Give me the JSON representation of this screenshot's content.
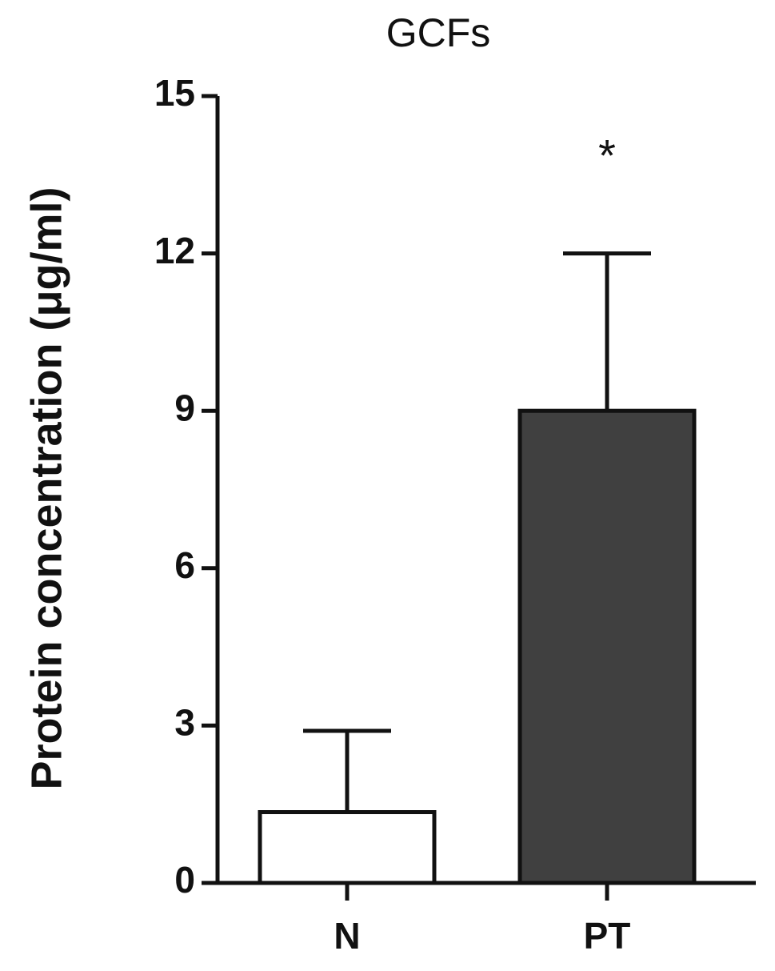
{
  "chart_data": {
    "type": "bar",
    "title": "GCFs",
    "y_label": "Protein concentration (μg/ml)",
    "categories": [
      "N",
      "PT"
    ],
    "values": [
      1.35,
      9.0
    ],
    "errors": [
      1.55,
      3.0
    ],
    "colors": [
      "#ffffff",
      "#404040"
    ],
    "ylim": [
      0,
      15
    ],
    "yticks": [
      0,
      3,
      6,
      9,
      12,
      15
    ],
    "annotations": [
      "*"
    ]
  }
}
